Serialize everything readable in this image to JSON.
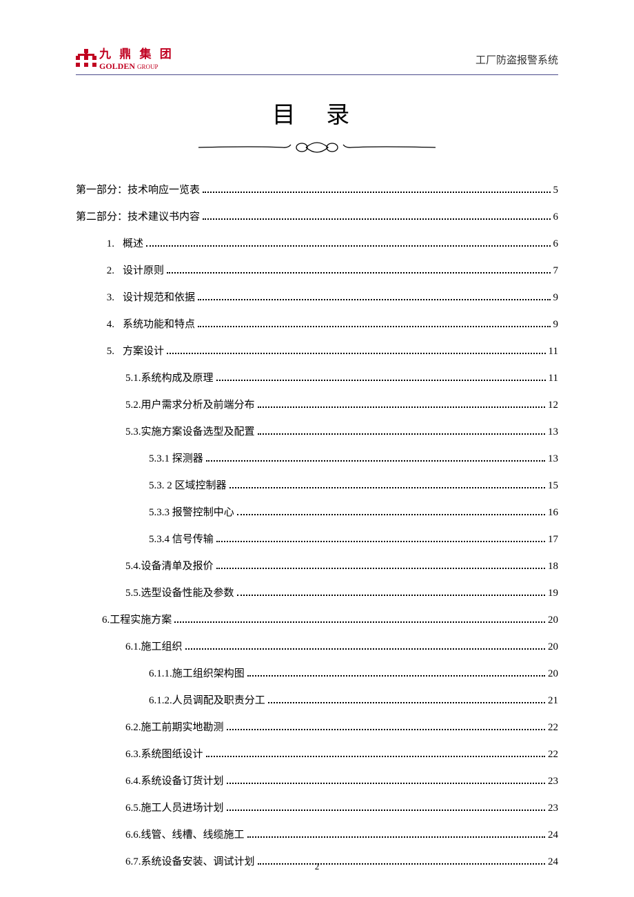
{
  "header": {
    "logo_cn": "九 鼎 集 团",
    "logo_en": "GOLDEN",
    "logo_en_sub": "GROUP",
    "subtitle": "工厂防盗报警系统"
  },
  "title": "目 录",
  "page_number": "2",
  "toc": [
    {
      "level": 0,
      "num": "",
      "label": "第一部分：技术响应一览表",
      "page": "5"
    },
    {
      "level": 0,
      "num": "",
      "label": "第二部分：技术建议书内容",
      "page": "6"
    },
    {
      "level": 1,
      "num": "1.",
      "label": "概述",
      "page": "6"
    },
    {
      "level": 1,
      "num": "2.",
      "label": "设计原则",
      "page": "7"
    },
    {
      "level": 1,
      "num": "3.",
      "label": "设计规范和依据",
      "page": "9"
    },
    {
      "level": 1,
      "num": "4.",
      "label": "系统功能和特点",
      "page": "9"
    },
    {
      "level": 1,
      "num": "5.",
      "label": "方案设计",
      "page": "11"
    },
    {
      "level": 2,
      "num": "",
      "label": "5.1.系统构成及原理",
      "page": "11"
    },
    {
      "level": 2,
      "num": "",
      "label": "5.2.用户需求分析及前端分布",
      "page": "12"
    },
    {
      "level": 2,
      "num": "",
      "label": "5.3.实施方案设备选型及配置",
      "page": "13"
    },
    {
      "level": 3,
      "num": "",
      "label": "5.3.1 探测器",
      "page": "13"
    },
    {
      "level": 3,
      "num": "",
      "label": "5.3. 2 区域控制器",
      "page": "15"
    },
    {
      "level": 3,
      "num": "",
      "label": "5.3.3 报警控制中心",
      "page": "16"
    },
    {
      "level": 3,
      "num": "",
      "label": "5.3.4 信号传输",
      "page": "17"
    },
    {
      "level": 2,
      "num": "",
      "label": "5.4.设备清单及报价",
      "page": "18"
    },
    {
      "level": 2,
      "num": "",
      "label": "5.5.选型设备性能及参数",
      "page": "19"
    },
    {
      "level": 1,
      "num": "",
      "label": "6.工程实施方案",
      "page": "20"
    },
    {
      "level": 2,
      "num": "",
      "label": "6.1.施工组织",
      "page": "20"
    },
    {
      "level": 3,
      "num": "",
      "label": "6.1.1.施工组织架构图",
      "page": "20"
    },
    {
      "level": 3,
      "num": "",
      "label": "6.1.2.人员调配及职责分工",
      "page": "21"
    },
    {
      "level": 2,
      "num": "",
      "label": "6.2.施工前期实地勘测",
      "page": "22"
    },
    {
      "level": 2,
      "num": "",
      "label": "6.3.系统图纸设计",
      "page": "22"
    },
    {
      "level": 2,
      "num": "",
      "label": "6.4.系统设备订货计划",
      "page": "23"
    },
    {
      "level": 2,
      "num": "",
      "label": "6.5.施工人员进场计划",
      "page": "23"
    },
    {
      "level": 2,
      "num": "",
      "label": "6.6.线管、线槽、线缆施工",
      "page": "24"
    },
    {
      "level": 2,
      "num": "",
      "label": "6.7.系统设备安装、调试计划",
      "page": "24"
    }
  ],
  "style": {
    "accent": "#c00020",
    "rule": "#4a4a8a",
    "text": "#000000",
    "fontsize_title": 34,
    "fontsize_body": 15
  }
}
